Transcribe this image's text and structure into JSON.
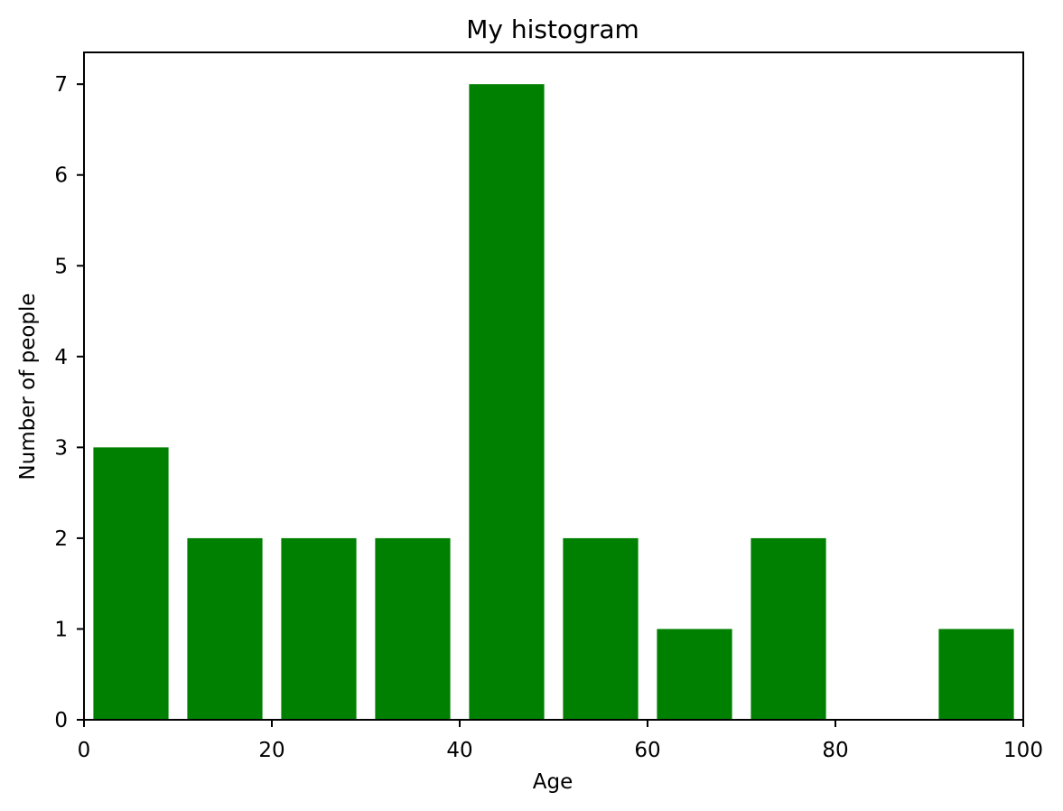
{
  "chart_data": {
    "type": "bar",
    "title": "My histogram",
    "xlabel": "Age",
    "ylabel": "Number of people",
    "xlim": [
      0,
      100
    ],
    "ylim": [
      0,
      7.35
    ],
    "bins": [
      [
        0,
        10
      ],
      [
        10,
        20
      ],
      [
        20,
        30
      ],
      [
        30,
        40
      ],
      [
        40,
        50
      ],
      [
        50,
        60
      ],
      [
        60,
        70
      ],
      [
        70,
        80
      ],
      [
        80,
        90
      ],
      [
        90,
        100
      ]
    ],
    "values": [
      3,
      2,
      2,
      2,
      7,
      2,
      1,
      2,
      0,
      1
    ],
    "bar_color": "#008000",
    "x_ticks": [
      0,
      20,
      40,
      60,
      80,
      100
    ],
    "y_ticks": [
      0,
      1,
      2,
      3,
      4,
      5,
      6,
      7
    ],
    "grid": false,
    "legend": "none"
  }
}
